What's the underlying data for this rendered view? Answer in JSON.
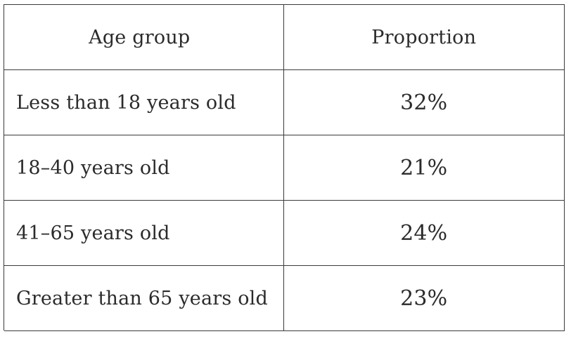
{
  "table": {
    "headers": {
      "age_group": "Age group",
      "proportion": "Proportion"
    },
    "rows": [
      {
        "age_group": "Less than 18 years old",
        "proportion": "32%"
      },
      {
        "age_group": "18–40 years old",
        "proportion": "21%"
      },
      {
        "age_group": "41–65 years old",
        "proportion": "24%"
      },
      {
        "age_group": "Greater than 65 years old",
        "proportion": "23%"
      }
    ]
  }
}
